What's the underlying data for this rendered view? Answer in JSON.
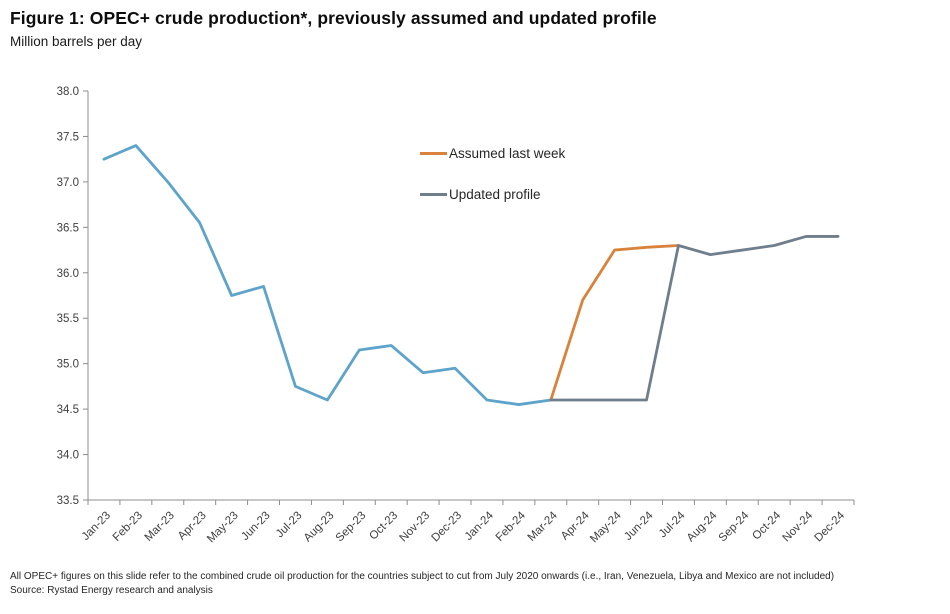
{
  "header": {
    "title": "Figure 1: OPEC+ crude production*, previously assumed and updated profile",
    "subtitle": "Million barrels per day"
  },
  "legend": [
    {
      "label": "Assumed last week",
      "color": "#D9823C"
    },
    {
      "label": "Updated profile",
      "color": "#6F7E8C"
    }
  ],
  "footnote": {
    "line1": "All OPEC+ figures on this slide refer to the combined crude oil production for the countries subject to cut from July 2020 onwards (i.e., Iran, Venezuela, Libya and Mexico are not included)",
    "source": "Source: Rystad Energy research and analysis"
  },
  "chart_data": {
    "type": "line",
    "title": "Figure 1: OPEC+ crude production*, previously assumed and updated profile",
    "ylabel": "Million barrels per day",
    "xlabel": "",
    "grid": false,
    "legend_position": "inside-top-center",
    "ylim": [
      33.5,
      38.0
    ],
    "ytick_step": 0.5,
    "categories": [
      "Jan-23",
      "Feb-23",
      "Mar-23",
      "Apr-23",
      "May-23",
      "Jun-23",
      "Jul-23",
      "Aug-23",
      "Sep-23",
      "Oct-23",
      "Nov-23",
      "Dec-23",
      "Jan-24",
      "Feb-24",
      "Mar-24",
      "Apr-24",
      "May-24",
      "Jun-24",
      "Jul-24",
      "Aug-24",
      "Sep-24",
      "Oct-24",
      "Nov-24",
      "Dec-24"
    ],
    "series": [
      {
        "name": "historical-production",
        "color": "#5EA3C9",
        "start_index": 0,
        "in_legend": false,
        "values": [
          37.25,
          37.4,
          37.0,
          36.55,
          35.75,
          35.85,
          34.75,
          34.6,
          35.15,
          35.2,
          34.9,
          34.95,
          34.6,
          34.55,
          34.6
        ]
      },
      {
        "name": "Assumed last week",
        "color": "#D9823C",
        "start_index": 14,
        "in_legend": true,
        "values": [
          34.6,
          35.7,
          36.25,
          36.28,
          36.3
        ]
      },
      {
        "name": "Updated profile",
        "color": "#6F7E8C",
        "start_index": 14,
        "in_legend": true,
        "values": [
          34.6,
          34.6,
          34.6,
          34.6,
          36.3,
          36.2,
          36.25,
          36.3,
          36.4,
          36.4
        ]
      }
    ]
  }
}
